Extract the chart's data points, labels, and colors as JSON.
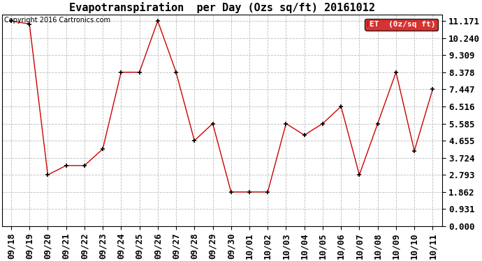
{
  "title": "Evapotranspiration  per Day (Ozs sq/ft) 20161012",
  "copyright": "Copyright 2016 Cartronics.com",
  "legend_label": "ET  (0z/sq ft)",
  "x_labels": [
    "09/18",
    "09/19",
    "09/20",
    "09/21",
    "09/22",
    "09/23",
    "09/24",
    "09/25",
    "09/26",
    "09/27",
    "09/28",
    "09/29",
    "09/30",
    "10/01",
    "10/02",
    "10/03",
    "10/04",
    "10/05",
    "10/06",
    "10/07",
    "10/08",
    "10/09",
    "10/10",
    "10/11"
  ],
  "y_final": [
    11.171,
    11.0,
    2.793,
    3.3,
    3.3,
    4.2,
    8.378,
    8.378,
    11.171,
    8.378,
    4.655,
    5.585,
    1.862,
    1.862,
    1.862,
    5.585,
    4.955,
    5.585,
    6.516,
    2.793,
    5.585,
    8.378,
    4.1,
    7.447
  ],
  "y_ticks": [
    0.0,
    0.931,
    1.862,
    2.793,
    3.724,
    4.655,
    5.585,
    6.516,
    7.447,
    8.378,
    9.309,
    10.24,
    11.171
  ],
  "line_color": "#cc0000",
  "marker_color": "#000000",
  "background_color": "#ffffff",
  "grid_color": "#bbbbbb",
  "legend_bg": "#cc0000",
  "legend_text_color": "#ffffff",
  "title_fontsize": 11,
  "tick_fontsize": 9,
  "copyright_fontsize": 7,
  "legend_fontsize": 8
}
